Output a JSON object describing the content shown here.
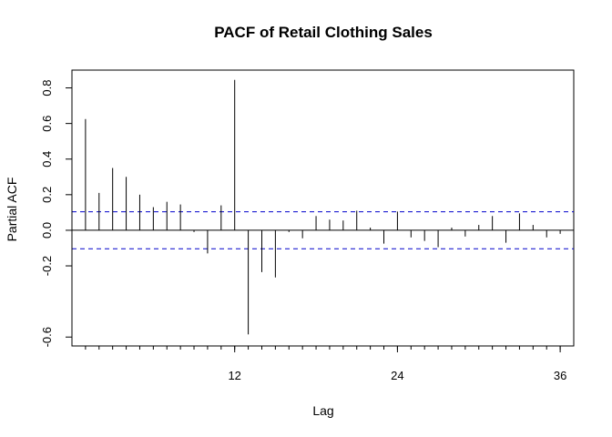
{
  "chart_data": {
    "type": "bar",
    "title": "PACF of Retail Clothing Sales",
    "xlabel": "Lag",
    "ylabel": "Partial ACF",
    "xlim": [
      0,
      37
    ],
    "ylim": [
      -0.65,
      0.9
    ],
    "x_ticks": [
      12,
      24,
      36
    ],
    "x_tick_labels": [
      "12",
      "24",
      "36"
    ],
    "y_ticks": [
      -0.6,
      -0.2,
      0.0,
      0.2,
      0.4,
      0.6,
      0.8
    ],
    "y_tick_labels": [
      "-0.6",
      "-0.2",
      "0.0",
      "0.2",
      "0.4",
      "0.6",
      "0.8"
    ],
    "confidence_bound": 0.104,
    "confidence_line_color": "#0000cc",
    "grid": false,
    "lags": [
      1,
      2,
      3,
      4,
      5,
      6,
      7,
      8,
      9,
      10,
      11,
      12,
      13,
      14,
      15,
      16,
      17,
      18,
      19,
      20,
      21,
      22,
      23,
      24,
      25,
      26,
      27,
      28,
      29,
      30,
      31,
      32,
      33,
      34,
      35,
      36
    ],
    "values": [
      0.625,
      0.21,
      0.35,
      0.3,
      0.2,
      0.13,
      0.16,
      0.145,
      -0.01,
      -0.13,
      0.14,
      0.845,
      -0.585,
      -0.235,
      -0.265,
      -0.01,
      -0.045,
      0.08,
      0.06,
      0.055,
      0.11,
      0.015,
      -0.075,
      0.105,
      -0.04,
      -0.06,
      -0.095,
      0.015,
      -0.035,
      0.03,
      0.08,
      -0.07,
      0.095,
      0.03,
      -0.04,
      -0.02
    ]
  }
}
